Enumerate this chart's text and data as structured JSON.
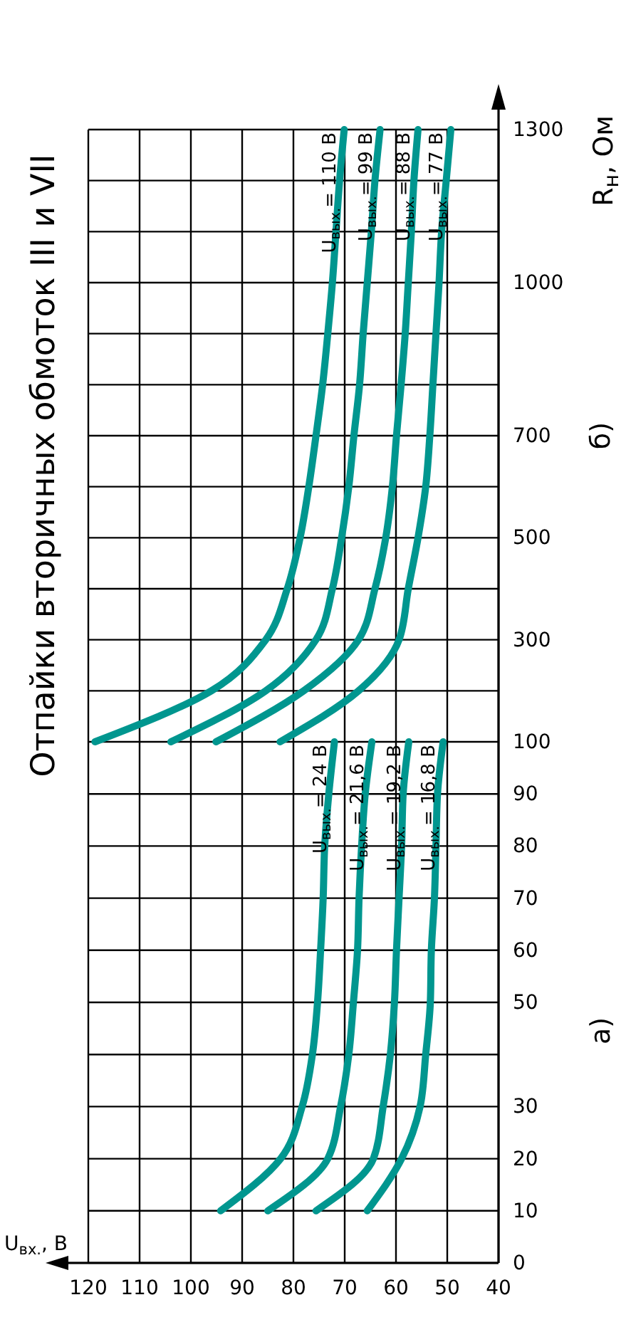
{
  "chart_data": [
    {
      "type": "line",
      "title": "Отпайки вторичных обмоток III и VII",
      "xlabel": "U$_{вх.}$, В",
      "annotations": [
        "а)"
      ],
      "grid": true,
      "xlim": [
        120,
        40
      ],
      "xticks": [
        120,
        110,
        100,
        90,
        80,
        70,
        60,
        50,
        40
      ],
      "ylim": [
        0,
        100
      ],
      "yticks": [
        0,
        10,
        20,
        30,
        {
          "value": 40,
          "label": null
        },
        50,
        60,
        70,
        80,
        90,
        100
      ],
      "series": [
        {
          "name": "U$_{вых.}$= 24 В",
          "color": "#00968f",
          "x": [
            94.2,
            82.5,
            78.3,
            76.3,
            75.3,
            74.7,
            74.2,
            73.9,
            73.1,
            72.0
          ],
          "values": [
            10,
            20,
            30,
            40,
            50,
            60,
            70,
            80,
            90,
            100
          ]
        },
        {
          "name": "U$_{вых.}$= 21,6 В",
          "color": "#00968f",
          "x": [
            85.0,
            73.3,
            70.8,
            69.2,
            68.3,
            67.5,
            67.2,
            66.7,
            66.0,
            64.7
          ],
          "values": [
            10,
            20,
            30,
            40,
            50,
            60,
            70,
            80,
            90,
            100
          ]
        },
        {
          "name": "U$_{вых.}$= 19,2 В",
          "color": "#00968f",
          "x": [
            75.6,
            64.4,
            62.5,
            61.1,
            60.3,
            59.9,
            59.4,
            58.9,
            58.6,
            57.5
          ],
          "values": [
            10,
            20,
            30,
            40,
            50,
            60,
            70,
            80,
            90,
            100
          ]
        },
        {
          "name": "U$_{вых.}$= 16,8 В",
          "color": "#00968f",
          "x": [
            65.6,
            58.9,
            55.3,
            54.2,
            53.3,
            53.1,
            52.5,
            52.2,
            51.9,
            50.8
          ],
          "values": [
            10,
            20,
            30,
            40,
            50,
            60,
            70,
            80,
            90,
            100
          ]
        }
      ]
    },
    {
      "type": "line",
      "ylabel": "R$_{н}$, Ом",
      "annotations": [
        "б)"
      ],
      "grid": true,
      "tick_labels": "y",
      "xlim": [
        120,
        40
      ],
      "xticks": [
        120,
        110,
        100,
        90,
        80,
        70,
        60,
        50,
        40
      ],
      "ylim": [
        100,
        1300
      ],
      "yticks": [
        {
          "value": 200,
          "label": null
        },
        300,
        {
          "value": 400,
          "label": null
        },
        500,
        {
          "value": 600,
          "label": null
        },
        700,
        {
          "value": 800,
          "label": null
        },
        {
          "value": 900,
          "label": null
        },
        1000,
        {
          "value": 1100,
          "label": null
        },
        {
          "value": 1200,
          "label": null
        },
        1300
      ],
      "series": [
        {
          "name": "U$_{вых.}$= 110 В",
          "color": "#00968f",
          "x": [
            118.7,
            96.0,
            85.4,
            81.2,
            78.7,
            77.0,
            75.6,
            74.3,
            73.3,
            72.4,
            71.7,
            71.0,
            70.1
          ],
          "values": [
            100,
            200,
            300,
            400,
            500,
            600,
            700,
            800,
            900,
            1000,
            1100,
            1200,
            1300
          ]
        },
        {
          "name": "U$_{вых.}$= 99 В",
          "color": "#00968f",
          "x": [
            103.9,
            85.4,
            75.6,
            72.4,
            70.6,
            69.2,
            68.2,
            67.1,
            66.4,
            65.6,
            64.8,
            64.1,
            63.1
          ],
          "values": [
            100,
            200,
            300,
            400,
            500,
            600,
            700,
            800,
            900,
            1000,
            1100,
            1200,
            1300
          ]
        },
        {
          "name": "U$_{вых.}$= 88 В",
          "color": "#00968f",
          "x": [
            95.1,
            78.0,
            67.3,
            64.1,
            62.0,
            60.7,
            59.9,
            59.0,
            58.2,
            57.6,
            57.0,
            56.5,
            55.7
          ],
          "values": [
            100,
            200,
            300,
            400,
            500,
            600,
            700,
            800,
            900,
            1000,
            1100,
            1200,
            1300
          ]
        },
        {
          "name": "U$_{вых.}$= 77 В",
          "color": "#00968f",
          "x": [
            82.6,
            67.3,
            59.4,
            57.6,
            55.7,
            54.2,
            53.4,
            52.8,
            52.2,
            51.6,
            51.1,
            50.2,
            49.3
          ],
          "values": [
            100,
            200,
            300,
            400,
            500,
            600,
            700,
            800,
            900,
            1000,
            1100,
            1200,
            1300
          ]
        }
      ]
    }
  ]
}
